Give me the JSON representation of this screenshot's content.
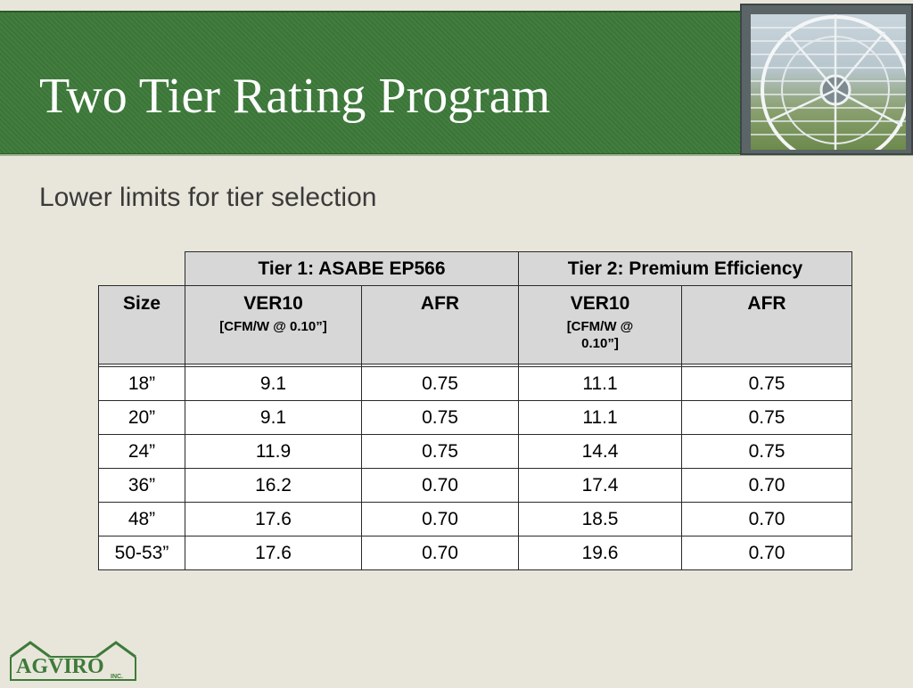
{
  "slide": {
    "title": "Two Tier Rating Program",
    "subtitle": "Lower limits for tier selection"
  },
  "table": {
    "group_headers": [
      "Tier 1: ASABE EP566",
      "Tier 2: Premium Efficiency"
    ],
    "columns": [
      {
        "label": "Size",
        "unit": ""
      },
      {
        "label": "VER10",
        "unit": "[CFM/W @ 0.10”]"
      },
      {
        "label": "AFR",
        "unit": ""
      },
      {
        "label": "VER10",
        "unit": "[CFM/W @ 0.10”]"
      },
      {
        "label": "AFR",
        "unit": ""
      }
    ],
    "rows": [
      [
        "18”",
        "9.1",
        "0.75",
        "11.1",
        "0.75"
      ],
      [
        "20”",
        "9.1",
        "0.75",
        "11.1",
        "0.75"
      ],
      [
        "24”",
        "11.9",
        "0.75",
        "14.4",
        "0.75"
      ],
      [
        "36”",
        "16.2",
        "0.70",
        "17.4",
        "0.70"
      ],
      [
        "48”",
        "17.6",
        "0.70",
        "18.5",
        "0.70"
      ],
      [
        "50-53”",
        "17.6",
        "0.70",
        "19.6",
        "0.70"
      ]
    ]
  },
  "logo": {
    "text": "AGVIRO",
    "suffix": "INC.",
    "color": "#3d7a3a"
  },
  "icons": {
    "header_image": "exhaust-fan-photo"
  }
}
